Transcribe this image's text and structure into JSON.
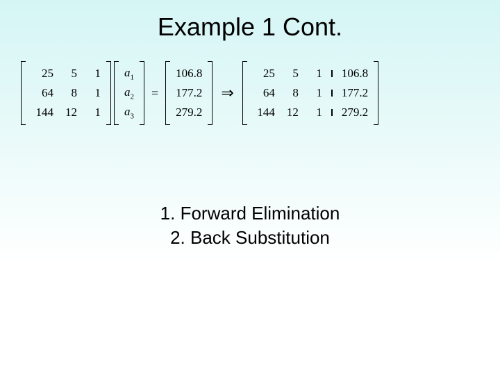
{
  "title": "Example 1 Cont.",
  "text_color": "#000000",
  "background_gradient": [
    "#d5f5f5",
    "#ffffff"
  ],
  "equation": {
    "matrixA": {
      "rows": [
        [
          "25",
          "5",
          "1"
        ],
        [
          "64",
          "8",
          "1"
        ],
        [
          "144",
          "12",
          "1"
        ]
      ]
    },
    "vectorX": {
      "items": [
        "a",
        "a",
        "a"
      ],
      "subs": [
        "1",
        "2",
        "3"
      ]
    },
    "equalsSymbol": "=",
    "vectorB": {
      "items": [
        "106.8",
        "177.2",
        "279.2"
      ]
    },
    "impliesSymbol": "⇒",
    "augmented": {
      "left": [
        [
          "25",
          "5",
          "1"
        ],
        [
          "64",
          "8",
          "1"
        ],
        [
          "144",
          "12",
          "1"
        ]
      ],
      "right": [
        "106.8",
        "177.2",
        "279.2"
      ]
    }
  },
  "steps": {
    "line1": "1. Forward Elimination",
    "line2": "2. Back Substitution"
  },
  "fonts": {
    "title_family": "Verdana",
    "title_size_pt": 28,
    "body_family": "Verdana",
    "body_size_pt": 20,
    "math_family": "Times New Roman",
    "math_size_pt": 13
  }
}
